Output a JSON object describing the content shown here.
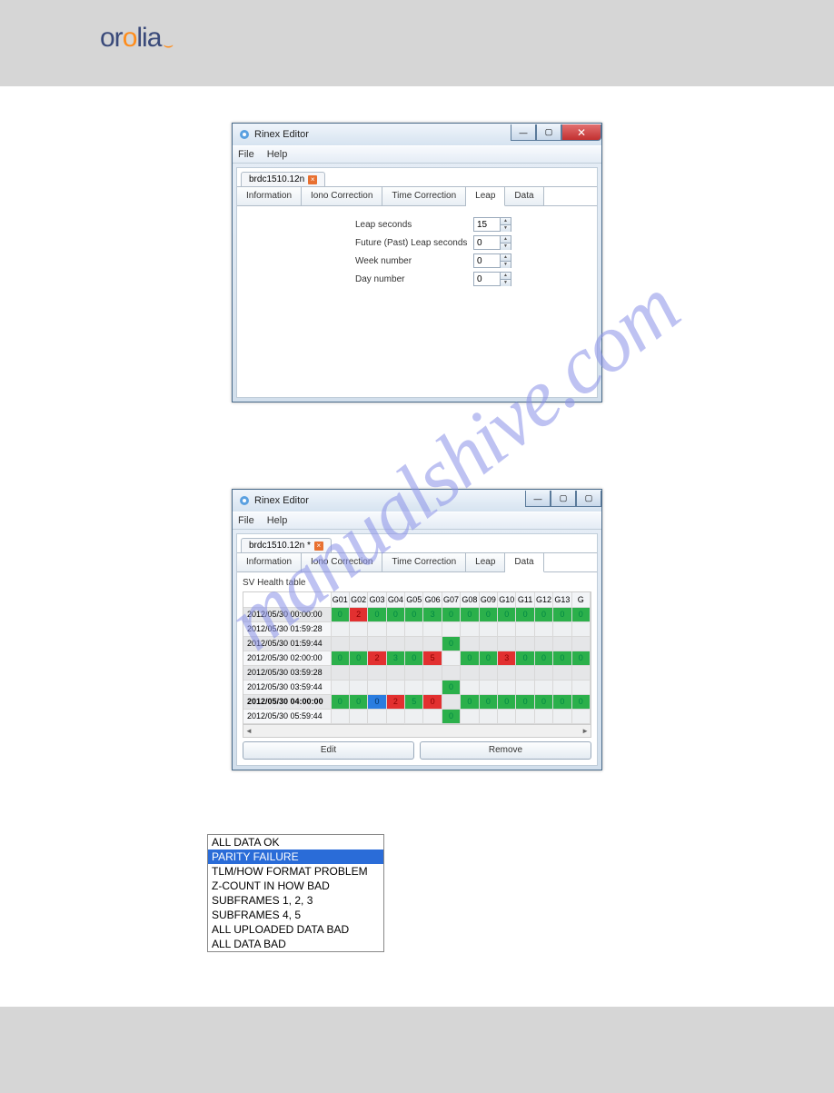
{
  "logo": {
    "part1": "or",
    "part2": "o",
    "part3": "li",
    "part4": "a",
    "swoosh": "⌣"
  },
  "watermark": "manualshive.com",
  "win1": {
    "title": "Rinex Editor",
    "menus": [
      "File",
      "Help"
    ],
    "filetab": "brdc1510.12n",
    "filetab_dirty": "",
    "subtabs": [
      "Information",
      "Iono Correction",
      "Time Correction",
      "Leap",
      "Data"
    ],
    "active_subtab": "Leap",
    "fields": [
      {
        "label": "Leap seconds",
        "value": "15"
      },
      {
        "label": "Future (Past) Leap seconds",
        "value": "0"
      },
      {
        "label": "Week number",
        "value": "0"
      },
      {
        "label": "Day number",
        "value": "0"
      }
    ]
  },
  "win2": {
    "title": "Rinex Editor",
    "menus": [
      "File",
      "Help"
    ],
    "filetab": "brdc1510.12n *",
    "subtabs": [
      "Information",
      "Iono Correction",
      "Time Correction",
      "Leap",
      "Data"
    ],
    "active_subtab": "Data",
    "table_label": "SV Health table",
    "columns": [
      "G01",
      "G02",
      "G03",
      "G04",
      "G05",
      "G06",
      "G07",
      "G08",
      "G09",
      "G10",
      "G11",
      "G12",
      "G13",
      "G"
    ],
    "selected_col": "G03",
    "selected_row": "2012/05/30 04:00:00",
    "rows": [
      {
        "t": "2012/05/30 00:00:00",
        "cells": [
          {
            "v": "0",
            "c": "g"
          },
          {
            "v": "2",
            "c": "r"
          },
          {
            "v": "0",
            "c": "g"
          },
          {
            "v": "0",
            "c": "g"
          },
          {
            "v": "0",
            "c": "g"
          },
          {
            "v": "3",
            "c": "g"
          },
          {
            "v": "0",
            "c": "g"
          },
          {
            "v": "0",
            "c": "g"
          },
          {
            "v": "0",
            "c": "g"
          },
          {
            "v": "0",
            "c": "g"
          },
          {
            "v": "0",
            "c": "g"
          },
          {
            "v": "0",
            "c": "g"
          },
          {
            "v": "0",
            "c": "g"
          },
          {
            "v": "0",
            "c": "g"
          }
        ]
      },
      {
        "t": "2012/05/30 01:59:28",
        "cells": [
          {
            "v": "",
            "c": ""
          },
          {
            "v": "",
            "c": ""
          },
          {
            "v": "",
            "c": ""
          },
          {
            "v": "",
            "c": ""
          },
          {
            "v": "",
            "c": ""
          },
          {
            "v": "",
            "c": ""
          },
          {
            "v": "",
            "c": ""
          },
          {
            "v": "",
            "c": ""
          },
          {
            "v": "",
            "c": ""
          },
          {
            "v": "",
            "c": ""
          },
          {
            "v": "",
            "c": ""
          },
          {
            "v": "",
            "c": ""
          },
          {
            "v": "",
            "c": ""
          },
          {
            "v": "",
            "c": ""
          }
        ]
      },
      {
        "t": "2012/05/30 01:59:44",
        "cells": [
          {
            "v": "",
            "c": ""
          },
          {
            "v": "",
            "c": ""
          },
          {
            "v": "",
            "c": ""
          },
          {
            "v": "",
            "c": ""
          },
          {
            "v": "",
            "c": ""
          },
          {
            "v": "",
            "c": ""
          },
          {
            "v": "0",
            "c": "g"
          },
          {
            "v": "",
            "c": ""
          },
          {
            "v": "",
            "c": ""
          },
          {
            "v": "",
            "c": ""
          },
          {
            "v": "",
            "c": ""
          },
          {
            "v": "",
            "c": ""
          },
          {
            "v": "",
            "c": ""
          },
          {
            "v": "",
            "c": ""
          }
        ]
      },
      {
        "t": "2012/05/30 02:00:00",
        "cells": [
          {
            "v": "0",
            "c": "g"
          },
          {
            "v": "0",
            "c": "g"
          },
          {
            "v": "2",
            "c": "r"
          },
          {
            "v": "3",
            "c": "g"
          },
          {
            "v": "0",
            "c": "g"
          },
          {
            "v": "5",
            "c": "r"
          },
          {
            "v": "",
            "c": ""
          },
          {
            "v": "0",
            "c": "g"
          },
          {
            "v": "0",
            "c": "g"
          },
          {
            "v": "3",
            "c": "r"
          },
          {
            "v": "0",
            "c": "g"
          },
          {
            "v": "0",
            "c": "g"
          },
          {
            "v": "0",
            "c": "g"
          },
          {
            "v": "0",
            "c": "g"
          }
        ]
      },
      {
        "t": "2012/05/30 03:59:28",
        "cells": [
          {
            "v": "",
            "c": ""
          },
          {
            "v": "",
            "c": ""
          },
          {
            "v": "",
            "c": ""
          },
          {
            "v": "",
            "c": ""
          },
          {
            "v": "",
            "c": ""
          },
          {
            "v": "",
            "c": ""
          },
          {
            "v": "",
            "c": ""
          },
          {
            "v": "",
            "c": ""
          },
          {
            "v": "",
            "c": ""
          },
          {
            "v": "",
            "c": ""
          },
          {
            "v": "",
            "c": ""
          },
          {
            "v": "",
            "c": ""
          },
          {
            "v": "",
            "c": ""
          },
          {
            "v": "",
            "c": ""
          }
        ]
      },
      {
        "t": "2012/05/30 03:59:44",
        "cells": [
          {
            "v": "",
            "c": ""
          },
          {
            "v": "",
            "c": ""
          },
          {
            "v": "",
            "c": ""
          },
          {
            "v": "",
            "c": ""
          },
          {
            "v": "",
            "c": ""
          },
          {
            "v": "",
            "c": ""
          },
          {
            "v": "0",
            "c": "g"
          },
          {
            "v": "",
            "c": ""
          },
          {
            "v": "",
            "c": ""
          },
          {
            "v": "",
            "c": ""
          },
          {
            "v": "",
            "c": ""
          },
          {
            "v": "",
            "c": ""
          },
          {
            "v": "",
            "c": ""
          },
          {
            "v": "",
            "c": ""
          }
        ]
      },
      {
        "t": "2012/05/30 04:00:00",
        "cells": [
          {
            "v": "0",
            "c": "g"
          },
          {
            "v": "0",
            "c": "g"
          },
          {
            "v": "0",
            "c": "b"
          },
          {
            "v": "2",
            "c": "r"
          },
          {
            "v": "5",
            "c": "g"
          },
          {
            "v": "0",
            "c": "r"
          },
          {
            "v": "",
            "c": ""
          },
          {
            "v": "0",
            "c": "g"
          },
          {
            "v": "0",
            "c": "g"
          },
          {
            "v": "0",
            "c": "g"
          },
          {
            "v": "0",
            "c": "g"
          },
          {
            "v": "0",
            "c": "g"
          },
          {
            "v": "0",
            "c": "g"
          },
          {
            "v": "0",
            "c": "g"
          }
        ]
      },
      {
        "t": "2012/05/30 05:59:44",
        "cells": [
          {
            "v": "",
            "c": ""
          },
          {
            "v": "",
            "c": ""
          },
          {
            "v": "",
            "c": ""
          },
          {
            "v": "",
            "c": ""
          },
          {
            "v": "",
            "c": ""
          },
          {
            "v": "",
            "c": ""
          },
          {
            "v": "0",
            "c": "g"
          },
          {
            "v": "",
            "c": ""
          },
          {
            "v": "",
            "c": ""
          },
          {
            "v": "",
            "c": ""
          },
          {
            "v": "",
            "c": ""
          },
          {
            "v": "",
            "c": ""
          },
          {
            "v": "",
            "c": ""
          },
          {
            "v": "",
            "c": ""
          }
        ]
      }
    ],
    "buttons": [
      "Edit",
      "Remove"
    ]
  },
  "listbox": {
    "items": [
      "ALL DATA OK",
      "PARITY FAILURE",
      "TLM/HOW FORMAT PROBLEM",
      "Z-COUNT IN HOW BAD",
      "SUBFRAMES 1, 2, 3",
      "SUBFRAMES 4, 5",
      "ALL UPLOADED DATA BAD",
      "ALL DATA BAD"
    ],
    "selected": "PARITY FAILURE"
  },
  "colors": {
    "green": "#2bb04b",
    "red": "#e23030",
    "blue": "#2a7de0",
    "header_bg": "#d6d6d6",
    "titlebar": "#d6e3f0"
  }
}
